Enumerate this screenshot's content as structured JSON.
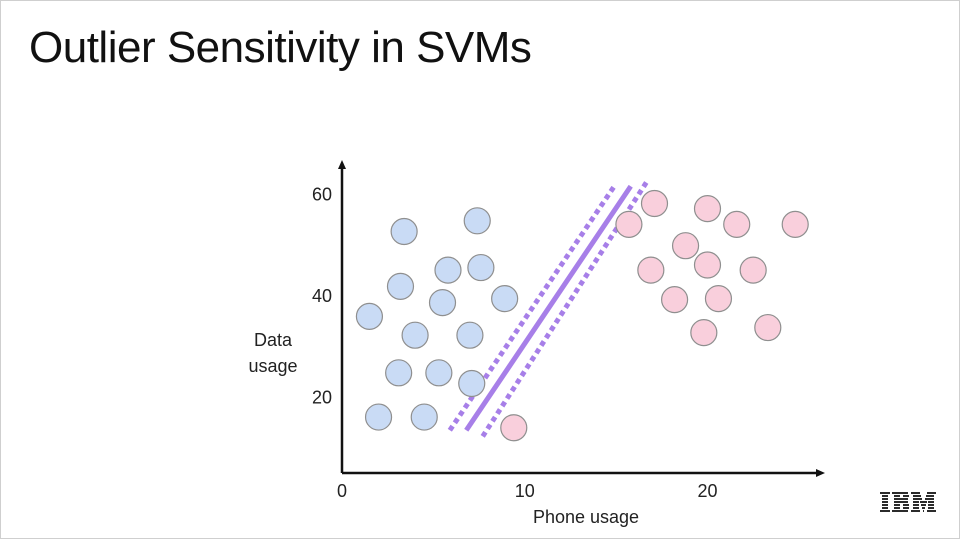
{
  "slide": {
    "title": "Outlier Sensitivity in SVMs",
    "logo_text": "IBM"
  },
  "chart_data": {
    "type": "scatter",
    "title": "",
    "xlabel": "Phone usage",
    "ylabel": "Data usage",
    "xlim": [
      0,
      25.5
    ],
    "ylim": [
      5,
      64
    ],
    "x_ticks": [
      0,
      10,
      20
    ],
    "y_ticks": [
      20,
      40,
      60
    ],
    "grid": false,
    "series": [
      {
        "color": "#c9dbf5",
        "edge": "#8f8f8f",
        "points": [
          [
            3.4,
            52.5
          ],
          [
            7.4,
            54.6
          ],
          [
            1.5,
            35.8
          ],
          [
            3.2,
            41.7
          ],
          [
            5.8,
            44.9
          ],
          [
            7.6,
            45.4
          ],
          [
            5.5,
            38.5
          ],
          [
            8.9,
            39.3
          ],
          [
            4.0,
            32.1
          ],
          [
            7.0,
            32.1
          ],
          [
            3.1,
            24.7
          ],
          [
            5.3,
            24.7
          ],
          [
            7.1,
            22.6
          ],
          [
            2.0,
            16.0
          ],
          [
            4.5,
            16.0
          ]
        ]
      },
      {
        "color": "#f9cfdc",
        "edge": "#8f8f8f",
        "points": [
          [
            17.1,
            58.0
          ],
          [
            20.0,
            57.0
          ],
          [
            15.7,
            53.9
          ],
          [
            21.6,
            53.9
          ],
          [
            24.8,
            53.9
          ],
          [
            18.8,
            49.7
          ],
          [
            16.9,
            44.9
          ],
          [
            20.0,
            45.9
          ],
          [
            22.5,
            44.9
          ],
          [
            18.2,
            39.1
          ],
          [
            20.6,
            39.3
          ],
          [
            19.8,
            32.6
          ],
          [
            23.3,
            33.6
          ],
          [
            9.4,
            13.9
          ]
        ]
      }
    ],
    "decision_boundary": {
      "color": "#a77fe8",
      "line": [
        [
          6.8,
          13.4
        ],
        [
          15.8,
          61.4
        ]
      ],
      "margin_offset": 0.9
    }
  }
}
